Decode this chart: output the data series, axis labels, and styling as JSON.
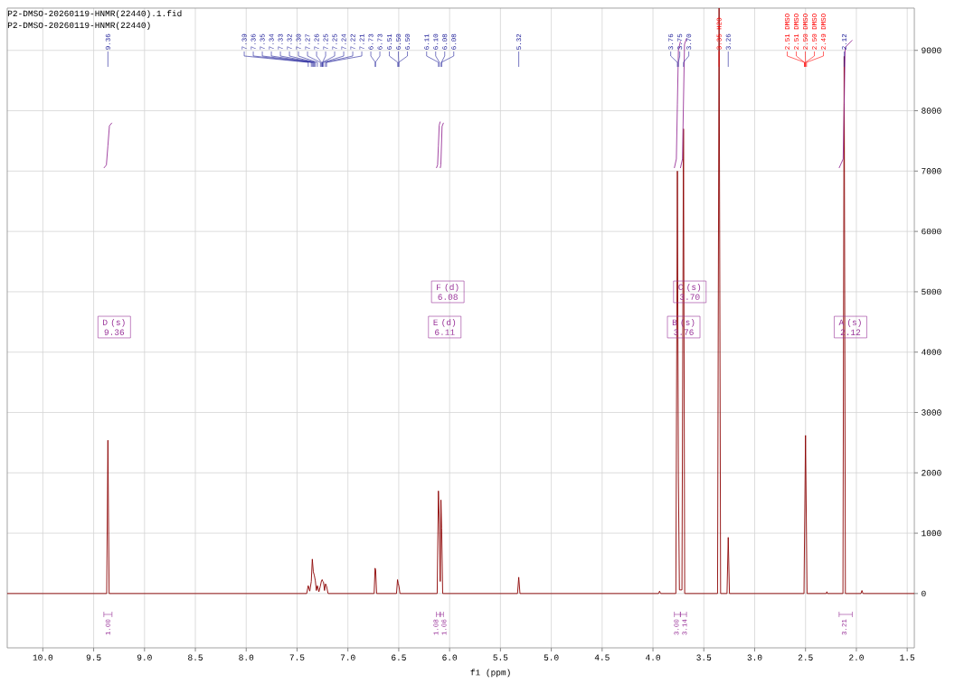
{
  "chart_data": {
    "type": "line",
    "title": "P2-DMSO-20260119-HNMR(22440).1.fid",
    "subtitle": "P2-DMSO-20260119-HNMR(22440)",
    "xlabel": "f1 (ppm)",
    "xlim": [
      10.35,
      1.43
    ],
    "ylim": [
      -900,
      9700
    ],
    "xticks": [
      {
        "value": 10,
        "label": "10.0"
      },
      9.5,
      {
        "value": 9,
        "label": "9.0"
      },
      8.5,
      {
        "value": 8,
        "label": "8.0"
      },
      7.5,
      {
        "value": 7,
        "label": "7.0"
      },
      6.5,
      {
        "value": 6,
        "label": "6.0"
      },
      5.5,
      {
        "value": 5,
        "label": "5.0"
      },
      4.5,
      {
        "value": 4,
        "label": "4.0"
      },
      3.5,
      {
        "value": 3,
        "label": "3.0"
      },
      2.5,
      {
        "value": 2,
        "label": "2.0"
      },
      1.5
    ],
    "yticks": [
      0,
      1000,
      2000,
      3000,
      4000,
      5000,
      6000,
      7000,
      8000,
      9000
    ],
    "grid": true,
    "series": [
      {
        "color": "#8b0000",
        "x": [
          10.35,
          9.372,
          9.36,
          9.348,
          7.405,
          7.39,
          7.375,
          7.36,
          7.35,
          7.34,
          7.33,
          7.32,
          7.31,
          7.3,
          7.285,
          7.27,
          7.26,
          7.253,
          7.247,
          7.24,
          7.23,
          7.22,
          7.21,
          7.195,
          6.742,
          6.733,
          6.727,
          6.718,
          6.522,
          6.512,
          6.505,
          6.498,
          6.488,
          6.122,
          6.11,
          6.1,
          6.092,
          6.085,
          6.078,
          6.068,
          5.332,
          5.32,
          5.308,
          3.945,
          3.935,
          3.925,
          3.775,
          3.76,
          3.75,
          3.74,
          3.715,
          3.7,
          3.688,
          3.365,
          3.35,
          3.335,
          3.272,
          3.26,
          3.248,
          2.515,
          2.5,
          2.485,
          2.295,
          2.29,
          2.285,
          2.132,
          2.12,
          2.108,
          1.955,
          1.945,
          1.935,
          1.43
        ],
        "values": [
          0,
          0,
          2540,
          0,
          0,
          130,
          40,
          200,
          570,
          360,
          300,
          210,
          50,
          130,
          30,
          130,
          210,
          230,
          200,
          190,
          50,
          160,
          120,
          0,
          0,
          420,
          390,
          0,
          0,
          230,
          170,
          120,
          0,
          0,
          1700,
          1150,
          200,
          1550,
          1080,
          0,
          0,
          270,
          0,
          0,
          40,
          0,
          0,
          7000,
          1930,
          60,
          60,
          7700,
          0,
          0,
          9700,
          0,
          0,
          930,
          0,
          0,
          2620,
          0,
          0,
          30,
          0,
          0,
          8900,
          0,
          0,
          50,
          0,
          0
        ]
      },
      {
        "color": "#993399",
        "x": [
          9.4,
          9.375,
          9.36,
          9.345,
          9.32
        ],
        "values": [
          7050,
          7100,
          7420,
          7750,
          7800
        ]
      },
      {
        "color": "#993399",
        "x": [
          6.13,
          6.118,
          6.11,
          6.102,
          6.092
        ],
        "values": [
          7050,
          7100,
          7420,
          7760,
          7820
        ]
      },
      {
        "color": "#993399",
        "x": [
          6.092,
          6.086,
          6.08,
          6.074,
          6.06
        ],
        "values": [
          7050,
          7100,
          7420,
          7740,
          7800
        ]
      },
      {
        "color": "#993399",
        "x": [
          3.79,
          3.77,
          3.76,
          3.75,
          3.73
        ],
        "values": [
          7050,
          7200,
          8100,
          9000,
          9150
        ]
      },
      {
        "color": "#993399",
        "x": [
          3.73,
          3.71,
          3.7,
          3.69,
          3.67
        ],
        "values": [
          7050,
          7200,
          8150,
          9100,
          9200
        ]
      },
      {
        "color": "#993399",
        "x": [
          2.17,
          2.13,
          2.12,
          2.11,
          2.04
        ],
        "values": [
          7050,
          7200,
          8100,
          9050,
          9170
        ]
      }
    ],
    "annotations": [
      {
        "text": "9.36",
        "x": 9.36
      },
      {
        "text": "7.39",
        "x": 7.39
      },
      {
        "text": "7.36",
        "x": 7.36
      },
      {
        "text": "7.35",
        "x": 7.35
      },
      {
        "text": "7.34",
        "x": 7.34
      },
      {
        "text": "7.33",
        "x": 7.33
      },
      {
        "text": "7.32",
        "x": 7.32
      },
      {
        "text": "7.30",
        "x": 7.3
      },
      {
        "text": "7.27",
        "x": 7.27
      },
      {
        "text": "7.26",
        "x": 7.26
      },
      {
        "text": "7.25",
        "x": 7.25
      },
      {
        "text": "7.25",
        "x": 7.25
      },
      {
        "text": "7.24",
        "x": 7.24
      },
      {
        "text": "7.22",
        "x": 7.22
      },
      {
        "text": "7.21",
        "x": 7.21
      },
      {
        "text": "6.73",
        "x": 6.73
      },
      {
        "text": "6.73",
        "x": 6.73
      },
      {
        "text": "6.51",
        "x": 6.51
      },
      {
        "text": "6.50",
        "x": 6.5
      },
      {
        "text": "6.50",
        "x": 6.5
      },
      {
        "text": "6.11",
        "x": 6.11
      },
      {
        "text": "6.10",
        "x": 6.1
      },
      {
        "text": "6.08",
        "x": 6.08
      },
      {
        "text": "6.08",
        "x": 6.08
      },
      {
        "text": "5.32",
        "x": 5.32
      },
      {
        "text": "3.76",
        "x": 3.76
      },
      {
        "text": "3.75",
        "x": 3.75
      },
      {
        "text": "3.70",
        "x": 3.7
      },
      {
        "text": "3.26",
        "x": 3.26
      },
      {
        "text": "2.12",
        "x": 2.12
      },
      {
        "text": "3.35 H2O",
        "x": 3.35
      },
      {
        "text": "2.51 DMSO",
        "x": 2.51
      },
      {
        "text": "2.51 DMSO",
        "x": 2.51
      },
      {
        "text": "2.50 DMSO",
        "x": 2.5
      },
      {
        "text": "2.50 DMSO",
        "x": 2.5
      },
      {
        "text": "2.49 DMSO",
        "x": 2.49
      },
      "D (s) 9.36",
      "E (d) 6.11",
      "F (d) 6.08",
      "B (s) 3.76",
      "C (s) 3.70",
      "A (s) 2.12",
      "1.00",
      "1.08",
      "1.06",
      "3.00",
      "3.14",
      "3.21"
    ]
  }
}
